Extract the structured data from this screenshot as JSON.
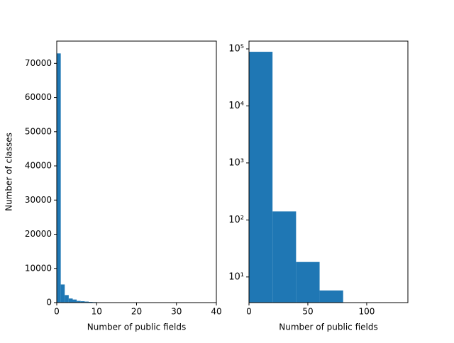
{
  "chart_data": [
    {
      "type": "histogram",
      "xlabel": "Number of public fields",
      "ylabel": "Number of classes",
      "bins": [
        0,
        1,
        2,
        3,
        4,
        5,
        6,
        7,
        8,
        9,
        10,
        11,
        12
      ],
      "values": [
        72900,
        5300,
        2200,
        1200,
        900,
        500,
        400,
        300,
        200,
        150,
        80,
        50
      ],
      "color": "#1f77b4",
      "xlim": [
        0,
        40
      ],
      "ylim": [
        0,
        76500
      ],
      "xticks": [
        0,
        10,
        20,
        30,
        40
      ],
      "yticks": [
        0,
        10000,
        20000,
        30000,
        40000,
        50000,
        60000,
        70000
      ],
      "log_y": false
    },
    {
      "type": "histogram",
      "xlabel": "Number of public fields",
      "bins": [
        0,
        20,
        40,
        60,
        80
      ],
      "values": [
        89000,
        141,
        18.3,
        5.8
      ],
      "color": "#1f77b4",
      "xlim": [
        0,
        135
      ],
      "ylim": [
        3.55,
        137000
      ],
      "xticks": [
        0,
        50,
        100
      ],
      "yticks": [
        {
          "value": 10,
          "label": "10¹"
        },
        {
          "value": 100,
          "label": "10²"
        },
        {
          "value": 1000,
          "label": "10³"
        },
        {
          "value": 10000,
          "label": "10⁴"
        },
        {
          "value": 100000,
          "label": "10⁵"
        }
      ],
      "log_y": true
    }
  ]
}
